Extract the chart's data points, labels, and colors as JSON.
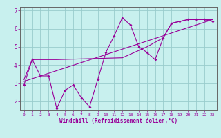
{
  "xlabel": "Windchill (Refroidissement éolien,°C)",
  "bg_color": "#c8f0ee",
  "line_color": "#990099",
  "grid_color": "#99cccc",
  "axis_color": "#666666",
  "xlim": [
    -0.5,
    23.5
  ],
  "ylim": [
    1.5,
    7.2
  ],
  "xticks": [
    0,
    1,
    2,
    3,
    4,
    5,
    6,
    7,
    8,
    9,
    10,
    11,
    12,
    13,
    14,
    15,
    16,
    17,
    18,
    19,
    20,
    21,
    22,
    23
  ],
  "yticks": [
    2,
    3,
    4,
    5,
    6,
    7
  ],
  "series1_x": [
    0,
    1,
    2,
    3,
    4,
    5,
    6,
    7,
    8,
    9,
    10,
    11,
    12,
    13,
    14,
    15,
    16,
    17,
    18,
    19,
    20,
    21,
    22,
    23
  ],
  "series1_y": [
    2.9,
    4.3,
    3.4,
    3.4,
    1.6,
    2.6,
    2.9,
    2.2,
    1.7,
    3.2,
    4.7,
    5.6,
    6.6,
    6.2,
    5.0,
    4.7,
    4.3,
    5.5,
    6.3,
    6.4,
    6.5,
    6.5,
    6.5,
    6.4
  ],
  "series2_x": [
    0,
    23
  ],
  "series2_y": [
    3.1,
    6.5
  ],
  "series3_x": [
    0,
    1,
    4,
    12,
    15,
    17,
    18,
    19,
    20,
    21,
    22,
    23
  ],
  "series3_y": [
    3.2,
    4.3,
    4.3,
    4.4,
    5.0,
    5.5,
    6.3,
    6.4,
    6.5,
    6.5,
    6.5,
    6.5
  ]
}
